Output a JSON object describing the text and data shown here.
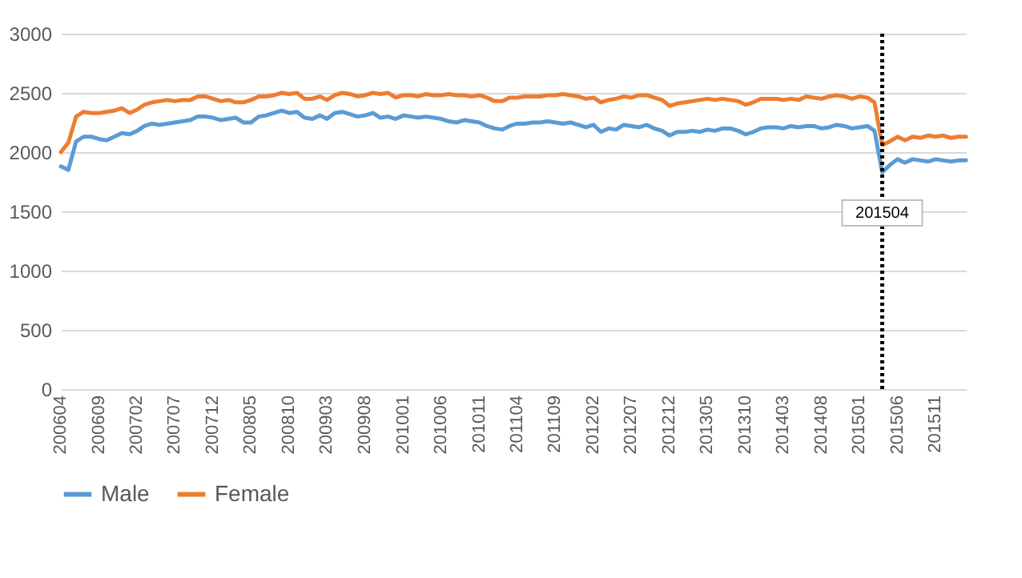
{
  "chart_data": {
    "type": "line",
    "x": [
      "2006-04",
      "2006-05",
      "2006-06",
      "2006-07",
      "2006-08",
      "2006-09",
      "2006-10",
      "2006-11",
      "2006-12",
      "2007-01",
      "2007-02",
      "2007-03",
      "2007-04",
      "2007-05",
      "2007-06",
      "2007-07",
      "2007-08",
      "2007-09",
      "2007-10",
      "2007-11",
      "2007-12",
      "2008-01",
      "2008-02",
      "2008-03",
      "2008-04",
      "2008-05",
      "2008-06",
      "2008-07",
      "2008-08",
      "2008-09",
      "2008-10",
      "2008-11",
      "2008-12",
      "2009-01",
      "2009-02",
      "2009-03",
      "2009-04",
      "2009-05",
      "2009-06",
      "2009-07",
      "2009-08",
      "2009-09",
      "2009-10",
      "2009-11",
      "2009-12",
      "2010-01",
      "2010-02",
      "2010-03",
      "2010-04",
      "2010-05",
      "2010-06",
      "2010-07",
      "2010-08",
      "2010-09",
      "2010-10",
      "2010-11",
      "2010-12",
      "2011-01",
      "2011-02",
      "2011-03",
      "2011-04",
      "2011-05",
      "2011-06",
      "2011-07",
      "2011-08",
      "2011-09",
      "2011-10",
      "2011-11",
      "2011-12",
      "2012-01",
      "2012-02",
      "2012-03",
      "2012-04",
      "2012-05",
      "2012-06",
      "2012-07",
      "2012-08",
      "2012-09",
      "2012-10",
      "2012-11",
      "2012-12",
      "2013-01",
      "2013-02",
      "2013-03",
      "2013-04",
      "2013-05",
      "2013-06",
      "2013-07",
      "2013-08",
      "2013-09",
      "2013-10",
      "2013-11",
      "2013-12",
      "2014-01",
      "2014-02",
      "2014-03",
      "2014-04",
      "2014-05",
      "2014-06",
      "2014-07",
      "2014-08",
      "2014-09",
      "2014-10",
      "2014-11",
      "2014-12",
      "2015-01",
      "2015-02",
      "2015-03",
      "2015-04",
      "2015-05",
      "2015-06",
      "2015-07",
      "2015-08",
      "2015-09",
      "2015-10",
      "2015-11",
      "2015-12",
      "2016-01",
      "2016-02",
      "2016-03"
    ],
    "series": [
      {
        "name": "Male",
        "color": "#5b9bd5",
        "values": [
          1880,
          1850,
          2090,
          2130,
          2130,
          2110,
          2100,
          2130,
          2160,
          2150,
          2180,
          2220,
          2240,
          2230,
          2240,
          2250,
          2260,
          2270,
          2300,
          2300,
          2290,
          2270,
          2280,
          2290,
          2250,
          2250,
          2300,
          2310,
          2330,
          2350,
          2330,
          2340,
          2290,
          2280,
          2310,
          2280,
          2330,
          2340,
          2320,
          2300,
          2310,
          2330,
          2290,
          2300,
          2280,
          2310,
          2300,
          2290,
          2300,
          2290,
          2280,
          2260,
          2250,
          2270,
          2260,
          2250,
          2220,
          2200,
          2190,
          2220,
          2240,
          2240,
          2250,
          2250,
          2260,
          2250,
          2240,
          2250,
          2230,
          2210,
          2230,
          2170,
          2200,
          2190,
          2230,
          2220,
          2210,
          2230,
          2200,
          2180,
          2140,
          2170,
          2170,
          2180,
          2170,
          2190,
          2180,
          2200,
          2200,
          2180,
          2150,
          2170,
          2200,
          2210,
          2210,
          2200,
          2220,
          2210,
          2220,
          2220,
          2200,
          2210,
          2230,
          2220,
          2200,
          2210,
          2220,
          2180,
          1830,
          1890,
          1940,
          1910,
          1940,
          1930,
          1920,
          1940,
          1930,
          1920,
          1930,
          1930
        ]
      },
      {
        "name": "Female",
        "color": "#ed7d31",
        "values": [
          2000,
          2080,
          2300,
          2340,
          2330,
          2330,
          2340,
          2350,
          2370,
          2330,
          2360,
          2400,
          2420,
          2430,
          2440,
          2430,
          2440,
          2440,
          2470,
          2470,
          2450,
          2430,
          2440,
          2420,
          2420,
          2440,
          2470,
          2470,
          2480,
          2500,
          2490,
          2500,
          2450,
          2450,
          2470,
          2440,
          2480,
          2500,
          2490,
          2470,
          2480,
          2500,
          2490,
          2500,
          2460,
          2480,
          2480,
          2470,
          2490,
          2480,
          2480,
          2490,
          2480,
          2480,
          2470,
          2480,
          2460,
          2430,
          2430,
          2460,
          2460,
          2470,
          2470,
          2470,
          2480,
          2480,
          2490,
          2480,
          2470,
          2450,
          2460,
          2420,
          2440,
          2450,
          2470,
          2460,
          2480,
          2480,
          2460,
          2440,
          2390,
          2410,
          2420,
          2430,
          2440,
          2450,
          2440,
          2450,
          2440,
          2430,
          2400,
          2420,
          2450,
          2450,
          2450,
          2440,
          2450,
          2440,
          2470,
          2460,
          2450,
          2470,
          2480,
          2470,
          2450,
          2470,
          2460,
          2420,
          2060,
          2090,
          2130,
          2100,
          2130,
          2120,
          2140,
          2130,
          2140,
          2120,
          2130,
          2130
        ]
      }
    ],
    "xlim": [
      "2006-04",
      "2016-03"
    ],
    "xticks": [
      {
        "value": "2006-04",
        "label": "200604"
      },
      {
        "value": "2006-09",
        "label": "200609"
      },
      {
        "value": "2007-02",
        "label": "200702"
      },
      {
        "value": "2007-07",
        "label": "200707"
      },
      {
        "value": "2007-12",
        "label": "200712"
      },
      {
        "value": "2008-05",
        "label": "200805"
      },
      {
        "value": "2008-10",
        "label": "200810"
      },
      {
        "value": "2009-03",
        "label": "200903"
      },
      {
        "value": "2009-08",
        "label": "200908"
      },
      {
        "value": "2010-01",
        "label": "201001"
      },
      {
        "value": "2010-06",
        "label": "201006"
      },
      {
        "value": "2010-11",
        "label": "201011"
      },
      {
        "value": "2011-04",
        "label": "201104"
      },
      {
        "value": "2011-09",
        "label": "201109"
      },
      {
        "value": "2012-02",
        "label": "201202"
      },
      {
        "value": "2012-07",
        "label": "201207"
      },
      {
        "value": "2012-12",
        "label": "201212"
      },
      {
        "value": "2013-05",
        "label": "201305"
      },
      {
        "value": "2013-10",
        "label": "201310"
      },
      {
        "value": "2014-03",
        "label": "201403"
      },
      {
        "value": "2014-08",
        "label": "201408"
      },
      {
        "value": "2015-01",
        "label": "201501"
      },
      {
        "value": "2015-06",
        "label": "201506"
      },
      {
        "value": "2015-11",
        "label": "201511"
      }
    ],
    "ylim": [
      0,
      3000
    ],
    "yticks": [
      0,
      500,
      1000,
      1500,
      2000,
      2500,
      3000
    ],
    "grid": "y",
    "legend": "bottom",
    "marker": "none",
    "line_style": "solid",
    "ref_lines": [
      {
        "axis": "x",
        "value": "2015-04",
        "label": "201504",
        "color": "#000000",
        "line_style": "dotted"
      }
    ]
  }
}
